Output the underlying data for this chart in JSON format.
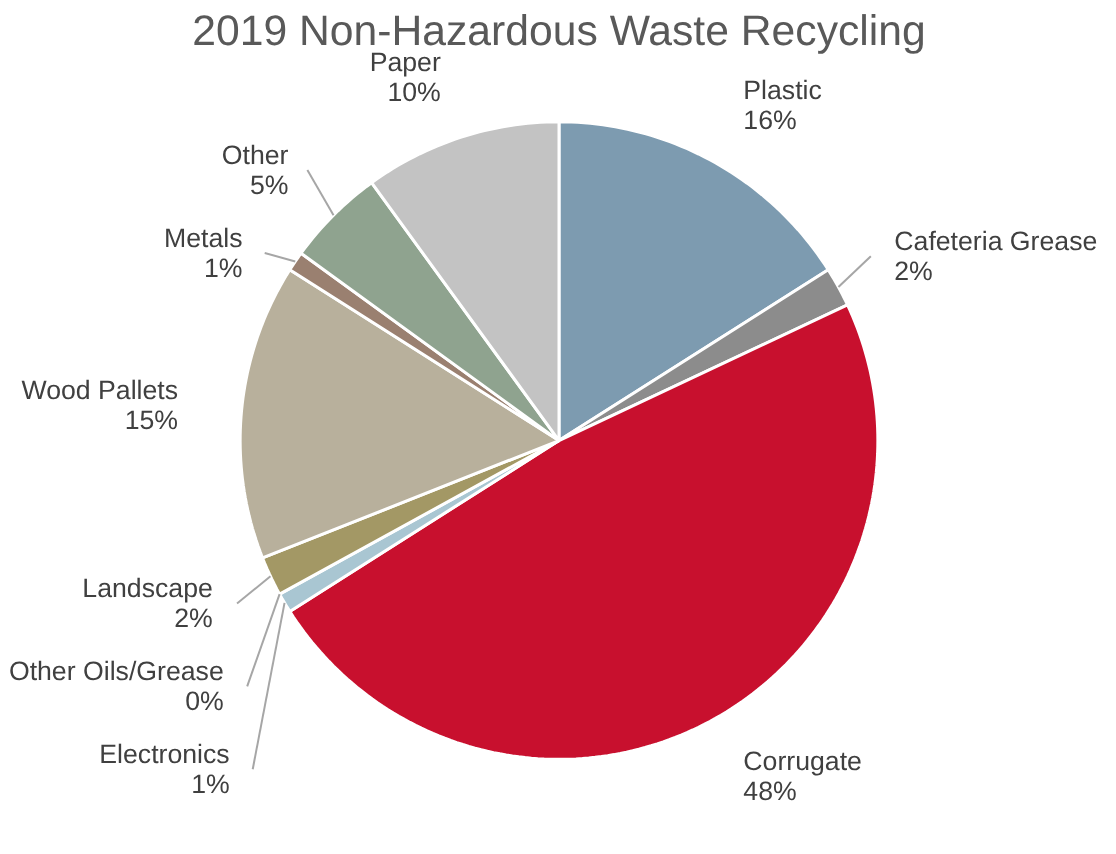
{
  "chart_data": {
    "type": "pie",
    "title": "2019 Non-Hazardous Waste Recycling",
    "categories": [
      "Plastic",
      "Cafeteria Grease",
      "Corrugate",
      "Electronics",
      "Other Oils/Grease",
      "Landscape",
      "Wood Pallets",
      "Metals",
      "Other",
      "Paper"
    ],
    "values": [
      16,
      2,
      48,
      1,
      0,
      2,
      15,
      1,
      5,
      10
    ],
    "value_labels": [
      "16%",
      "2%",
      "48%",
      "1%",
      "0%",
      "2%",
      "15%",
      "1%",
      "5%",
      "10%"
    ],
    "colors": [
      "#7d9bb0",
      "#8c8c8c",
      "#c8102e",
      "#a9c6d2",
      "#6f8fa0",
      "#a39865",
      "#b8b09c",
      "#9a8070",
      "#8fa38f",
      "#c3c3c3"
    ]
  }
}
